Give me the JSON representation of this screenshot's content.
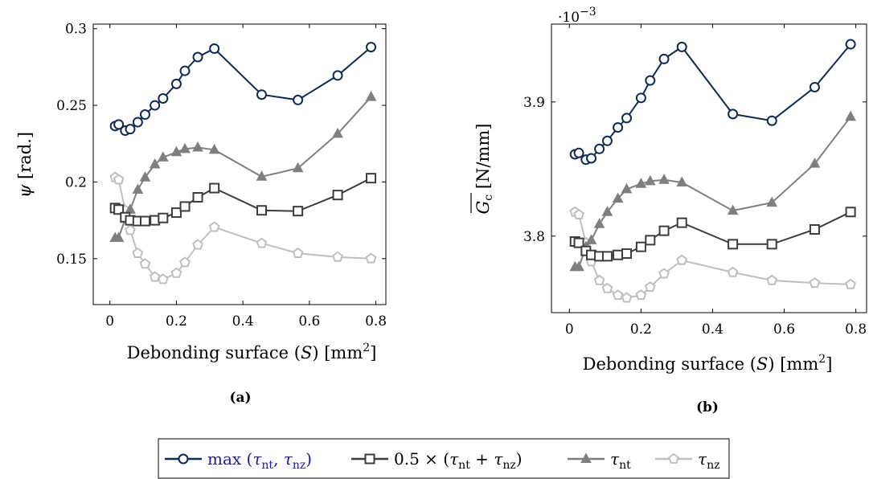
{
  "figure": {
    "caption_a": "(a)",
    "caption_b": "(b)",
    "legend": [
      {
        "id": "max",
        "color": "#0f2a52",
        "marker": "circle",
        "text_color": "#1a1aa0"
      },
      {
        "id": "avg",
        "color": "#3d3d3d",
        "marker": "square",
        "text_color": "#000000"
      },
      {
        "id": "nt",
        "color": "#7f7f7f",
        "marker": "triangle",
        "text_color": "#000000"
      },
      {
        "id": "nz",
        "color": "#bfbfbf",
        "marker": "pentagon",
        "text_color": "#000000"
      }
    ]
  },
  "chart_data": [
    {
      "type": "line",
      "xlabel": "Debonding surface (S) [mm²]",
      "ylabel": "ψ [rad.]",
      "xlim": [
        -0.05,
        0.83
      ],
      "ylim": [
        0.12,
        0.303
      ],
      "xticks": [
        0,
        0.2,
        0.4,
        0.6,
        0.8
      ],
      "xtick_labels": [
        "0",
        "0.2",
        "0.4",
        "0.6",
        "0.8"
      ],
      "yticks": [
        0.15,
        0.2,
        0.25,
        0.3
      ],
      "ytick_labels": [
        "0.15",
        "0.2",
        "0.25",
        "0.3"
      ],
      "x": [
        0.0157,
        0.0265,
        0.0462,
        0.0612,
        0.0838,
        0.1059,
        0.1354,
        0.1599,
        0.2001,
        0.2257,
        0.2644,
        0.3142,
        0.4565,
        0.5656,
        0.6851,
        0.7854
      ],
      "series": [
        {
          "name": "max (τnt, τnz)",
          "values": [
            0.2365,
            0.2375,
            0.2335,
            0.2345,
            0.239,
            0.244,
            0.25,
            0.2545,
            0.264,
            0.2725,
            0.2815,
            0.287,
            0.257,
            0.2535,
            0.2695,
            0.288
          ]
        },
        {
          "name": "0.5 × (τnt + τnz)",
          "values": [
            0.183,
            0.182,
            0.177,
            0.175,
            0.1745,
            0.1745,
            0.175,
            0.1765,
            0.18,
            0.184,
            0.19,
            0.196,
            0.1815,
            0.181,
            0.1915,
            0.2025
          ]
        },
        {
          "name": "τnt",
          "values": [
            0.1635,
            0.1635,
            0.176,
            0.182,
            0.195,
            0.203,
            0.2115,
            0.216,
            0.2195,
            0.2215,
            0.2225,
            0.221,
            0.2035,
            0.209,
            0.2315,
            0.2555
          ]
        },
        {
          "name": "τnz",
          "values": [
            0.203,
            0.2015,
            0.1815,
            0.1685,
            0.1535,
            0.1465,
            0.138,
            0.1365,
            0.1405,
            0.1475,
            0.159,
            0.1705,
            0.16,
            0.1535,
            0.151,
            0.15
          ]
        }
      ]
    },
    {
      "type": "line",
      "xlabel": "Debonding surface (S) [mm²]",
      "ylabel": "Gc [N/mm]",
      "scale_label": "·10−3",
      "xlim": [
        -0.05,
        0.83
      ],
      "ylim": [
        3.743,
        3.958
      ],
      "xticks": [
        0,
        0.2,
        0.4,
        0.6,
        0.8
      ],
      "xtick_labels": [
        "0",
        "0.2",
        "0.4",
        "0.6",
        "0.8"
      ],
      "yticks": [
        3.8,
        3.9
      ],
      "ytick_labels": [
        "3.8",
        "3.9"
      ],
      "x": [
        0.0157,
        0.0265,
        0.0462,
        0.0612,
        0.0838,
        0.1059,
        0.1354,
        0.1599,
        0.2001,
        0.2257,
        0.2644,
        0.3142,
        0.4565,
        0.5656,
        0.6851,
        0.7854
      ],
      "series": [
        {
          "name": "max (τnt, τnz)",
          "values": [
            3.861,
            3.862,
            3.857,
            3.858,
            3.865,
            3.871,
            3.881,
            3.888,
            3.903,
            3.916,
            3.932,
            3.941,
            3.891,
            3.886,
            3.911,
            3.943
          ]
        },
        {
          "name": "0.5 × (τnt + τnz)",
          "values": [
            3.796,
            3.795,
            3.789,
            3.786,
            3.785,
            3.785,
            3.786,
            3.787,
            3.792,
            3.797,
            3.804,
            3.81,
            3.794,
            3.794,
            3.805,
            3.818
          ]
        },
        {
          "name": "τnt",
          "values": [
            3.777,
            3.777,
            3.792,
            3.797,
            3.809,
            3.818,
            3.828,
            3.835,
            3.839,
            3.841,
            3.842,
            3.84,
            3.819,
            3.825,
            3.854,
            3.889
          ]
        },
        {
          "name": "τnz",
          "values": [
            3.818,
            3.816,
            3.795,
            3.781,
            3.767,
            3.761,
            3.756,
            3.754,
            3.756,
            3.762,
            3.772,
            3.782,
            3.773,
            3.767,
            3.765,
            3.764
          ]
        }
      ]
    }
  ]
}
